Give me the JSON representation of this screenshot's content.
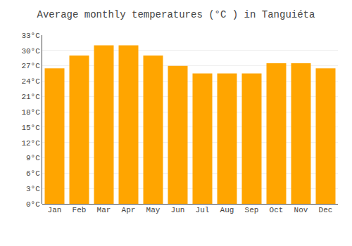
{
  "chart_data": {
    "type": "bar",
    "title": "Average monthly temperatures (°C ) in Tanguiéta",
    "categories": [
      "Jan",
      "Feb",
      "Mar",
      "Apr",
      "May",
      "Jun",
      "Jul",
      "Aug",
      "Sep",
      "Oct",
      "Nov",
      "Dec"
    ],
    "values": [
      26.5,
      29.0,
      31.0,
      31.0,
      29.0,
      27.0,
      25.5,
      25.5,
      25.5,
      27.5,
      27.5,
      26.5
    ],
    "color": "#FFA500",
    "ylim": [
      0,
      33
    ],
    "yticks": [
      {
        "value": 0,
        "label": "0°C"
      },
      {
        "value": 3,
        "label": "3°C"
      },
      {
        "value": 6,
        "label": "6°C"
      },
      {
        "value": 9,
        "label": "9°C"
      },
      {
        "value": 12,
        "label": "12°C"
      },
      {
        "value": 15,
        "label": "15°C"
      },
      {
        "value": 18,
        "label": "18°C"
      },
      {
        "value": 21,
        "label": "21°C"
      },
      {
        "value": 24,
        "label": "24°C"
      },
      {
        "value": 27,
        "label": "27°C"
      },
      {
        "value": 30,
        "label": "30°C"
      },
      {
        "value": 33,
        "label": "33°C"
      }
    ],
    "grid": true
  }
}
